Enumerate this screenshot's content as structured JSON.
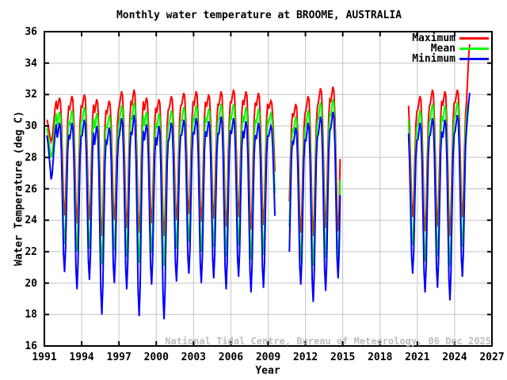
{
  "chart_data": {
    "type": "line",
    "title": "Monthly water temperature at BROOME, AUSTRALIA",
    "xlabel": "Year",
    "ylabel": "Water Temperature (deg C)",
    "watermark": {
      "text": "National Tidal Centre, Bureau of Meteorology, 06 Dec 2025",
      "color": "#bdbdbd"
    },
    "xlim": [
      1991,
      2027
    ],
    "ylim": [
      16,
      36
    ],
    "xticks": [
      1991,
      1994,
      1997,
      2000,
      2003,
      2006,
      2009,
      2012,
      2015,
      2018,
      2021,
      2024,
      2027
    ],
    "yticks": [
      16,
      18,
      20,
      22,
      24,
      26,
      28,
      30,
      32,
      34,
      36
    ],
    "grid": true,
    "grid_color": "#c4c4c4",
    "axis_color": "#000000",
    "legend_position": "top-right-inside",
    "legend": [
      "Maximum",
      "Mean",
      "Minimum"
    ],
    "series": [
      {
        "name": "Maximum",
        "color": "#ff0000"
      },
      {
        "name": "Mean",
        "color": "#00ff00"
      },
      {
        "name": "Minimum",
        "color": "#0000ff"
      }
    ],
    "x_resolution": "monthly",
    "monthly_shape": [
      0.9,
      0.95,
      1.0,
      0.97,
      0.78,
      0.46,
      0.12,
      0.0,
      0.16,
      0.5,
      0.8,
      0.92
    ],
    "gaps": [
      "1995 none",
      "Aug 2009 - Aug 2010",
      "Nov 2014 - Mar 2020"
    ],
    "annual_cycles": [
      {
        "year": 1991,
        "m0": 3,
        "values": {
          "max": [
            30.4,
            30.1,
            29.7,
            29.3,
            29.0,
            29.2,
            29.8,
            30.5,
            31.2,
            31.6
          ],
          "mean": [
            29.9,
            29.5,
            29.0,
            28.4,
            28.0,
            28.2,
            28.9,
            29.7,
            30.4,
            30.8
          ],
          "min": [
            29.4,
            28.9,
            28.2,
            27.4,
            26.6,
            26.9,
            27.8,
            28.8,
            29.6,
            30.1
          ]
        }
      },
      {
        "year": 1992,
        "peaks": [
          31.8,
          30.9,
          30.2
        ],
        "troughs": [
          24.3,
          22.5,
          20.7
        ]
      },
      {
        "year": 1993,
        "peaks": [
          31.9,
          31.0,
          30.2
        ],
        "troughs": [
          23.8,
          22.0,
          19.6
        ]
      },
      {
        "year": 1994,
        "peaks": [
          32.0,
          31.2,
          30.4
        ],
        "troughs": [
          24.0,
          22.2,
          20.2
        ]
      },
      {
        "year": 1995,
        "peaks": [
          31.7,
          30.8,
          30.0
        ],
        "troughs": [
          23.0,
          21.2,
          18.0
        ]
      },
      {
        "year": 1996,
        "peaks": [
          31.6,
          30.7,
          29.9
        ],
        "troughs": [
          24.0,
          22.1,
          20.0
        ]
      },
      {
        "year": 1997,
        "peaks": [
          32.2,
          31.3,
          30.5
        ],
        "troughs": [
          23.5,
          21.7,
          19.6
        ]
      },
      {
        "year": 1998,
        "peaks": [
          32.3,
          31.5,
          30.7
        ],
        "troughs": [
          23.2,
          21.3,
          17.9
        ]
      },
      {
        "year": 1999,
        "peaks": [
          31.8,
          30.9,
          30.1
        ],
        "troughs": [
          23.8,
          21.9,
          19.9
        ]
      },
      {
        "year": 2000,
        "peaks": [
          31.7,
          30.8,
          30.0
        ],
        "troughs": [
          23.0,
          21.1,
          17.7
        ]
      },
      {
        "year": 2001,
        "peaks": [
          31.9,
          31.0,
          30.2
        ],
        "troughs": [
          24.0,
          22.2,
          20.1
        ]
      },
      {
        "year": 2002,
        "peaks": [
          32.1,
          31.2,
          30.4
        ],
        "troughs": [
          24.4,
          22.6,
          20.6
        ]
      },
      {
        "year": 2003,
        "peaks": [
          32.2,
          31.3,
          30.5
        ],
        "troughs": [
          23.9,
          22.0,
          20.0
        ]
      },
      {
        "year": 2004,
        "peaks": [
          32.0,
          31.1,
          30.3
        ],
        "troughs": [
          24.1,
          22.3,
          20.3
        ]
      },
      {
        "year": 2005,
        "peaks": [
          32.2,
          31.4,
          30.6
        ],
        "troughs": [
          23.6,
          21.7,
          19.6
        ]
      },
      {
        "year": 2006,
        "peaks": [
          32.3,
          31.4,
          30.5
        ],
        "troughs": [
          24.2,
          22.4,
          20.4
        ]
      },
      {
        "year": 2007,
        "peaks": [
          32.2,
          31.2,
          30.3
        ],
        "troughs": [
          23.4,
          21.5,
          19.4
        ]
      },
      {
        "year": 2008,
        "peaks": [
          32.1,
          31.1,
          30.2
        ],
        "troughs": [
          23.7,
          21.8,
          19.7
        ]
      },
      {
        "year": 2009,
        "m1": 7,
        "peaks": [
          31.6,
          30.8,
          30.0
        ],
        "troughs": [
          26.5,
          25.0,
          23.5
        ]
      },
      {
        "year": 2010,
        "m0": 9,
        "peaks": [
          31.4,
          30.5,
          29.8
        ],
        "troughs": [
          24.0,
          22.3,
          20.5
        ]
      },
      {
        "year": 2011,
        "peaks": [
          31.4,
          30.6,
          29.9
        ],
        "troughs": [
          23.2,
          21.4,
          19.9
        ]
      },
      {
        "year": 2012,
        "peaks": [
          31.9,
          31.0,
          30.2
        ],
        "troughs": [
          23.0,
          21.1,
          18.8
        ]
      },
      {
        "year": 2013,
        "peaks": [
          32.4,
          31.5,
          30.6
        ],
        "troughs": [
          23.5,
          21.6,
          19.5
        ]
      },
      {
        "year": 2014,
        "m1": 10,
        "peaks": [
          32.5,
          31.7,
          30.9
        ],
        "troughs": [
          23.3,
          21.4,
          20.3
        ]
      },
      {
        "year": 2020,
        "m0": 4,
        "peaks": [
          31.5,
          30.6,
          29.8
        ],
        "troughs": [
          24.2,
          22.4,
          20.6
        ]
      },
      {
        "year": 2021,
        "peaks": [
          31.9,
          31.0,
          30.2
        ],
        "troughs": [
          23.3,
          21.4,
          19.4
        ]
      },
      {
        "year": 2022,
        "peaks": [
          32.3,
          31.4,
          30.5
        ],
        "troughs": [
          23.6,
          21.7,
          19.7
        ]
      },
      {
        "year": 2023,
        "peaks": [
          32.2,
          31.3,
          30.4
        ],
        "troughs": [
          23.0,
          21.1,
          18.9
        ]
      },
      {
        "year": 2024,
        "peaks": [
          32.3,
          31.5,
          30.7
        ],
        "troughs": [
          24.2,
          22.3,
          20.4
        ]
      },
      {
        "year": 2025,
        "m0": 1,
        "m1": 3,
        "values": {
          "max": [
            33.0,
            34.4,
            35.2
          ],
          "mean": [
            31.2,
            31.6,
            null
          ],
          "min": [
            30.7,
            31.5,
            32.1
          ]
        }
      }
    ]
  }
}
